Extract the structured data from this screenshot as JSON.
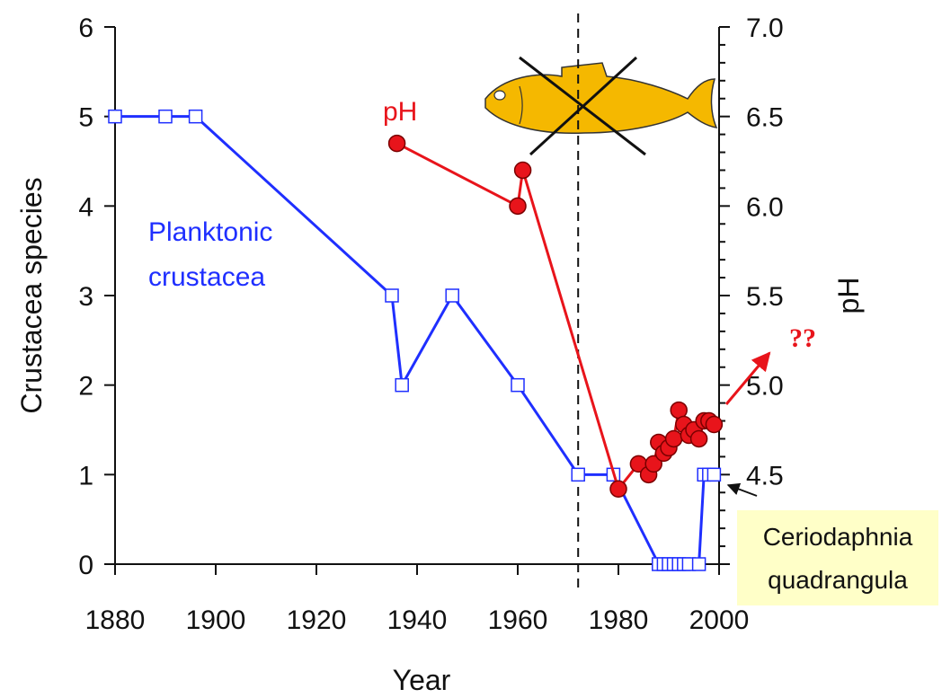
{
  "chart_data": {
    "type": "line",
    "xlabel": "Year",
    "ylabel_left": "Crustacea species",
    "ylabel_right": "pH",
    "xlim": [
      1880,
      2000
    ],
    "ylim_left": [
      0,
      6
    ],
    "ylim_right": [
      4.0,
      7.0
    ],
    "x_ticks": [
      "1880",
      "1900",
      "1920",
      "1940",
      "1960",
      "1980",
      "2000"
    ],
    "y_ticks_left": [
      "0",
      "1",
      "2",
      "3",
      "4",
      "5",
      "6"
    ],
    "y_ticks_right": [
      "4.5",
      "5.0",
      "5.5",
      "6.0",
      "6.5",
      "7.0"
    ],
    "grid": false,
    "event_line_year": 1972,
    "series": [
      {
        "name": "Planktonic crustacea",
        "label": [
          "Planktonic",
          "crustacea"
        ],
        "axis": "left",
        "color": "#1f2fff",
        "marker": "open-square",
        "points": [
          [
            1880,
            5
          ],
          [
            1890,
            5
          ],
          [
            1896,
            5
          ],
          [
            1935,
            3
          ],
          [
            1937,
            2
          ],
          [
            1947,
            3
          ],
          [
            1960,
            2
          ],
          [
            1972,
            1
          ],
          [
            1979,
            1
          ],
          [
            1988,
            0
          ],
          [
            1989,
            0
          ],
          [
            1990,
            0
          ],
          [
            1991,
            0
          ],
          [
            1992,
            0
          ],
          [
            1993,
            0
          ],
          [
            1994,
            0
          ],
          [
            1996,
            0
          ],
          [
            1997,
            1
          ],
          [
            1998,
            1
          ],
          [
            1999,
            1
          ]
        ]
      },
      {
        "name": "pH",
        "label": [
          "pH"
        ],
        "axis": "right",
        "color": "#e8141b",
        "marker": "filled-circle",
        "points": [
          [
            1936,
            6.35
          ],
          [
            1960,
            6.0
          ],
          [
            1961,
            6.2
          ],
          [
            1980,
            4.42
          ],
          [
            1984,
            4.56
          ],
          [
            1986,
            4.5
          ],
          [
            1987,
            4.56
          ],
          [
            1988,
            4.68
          ],
          [
            1989,
            4.62
          ],
          [
            1990,
            4.65
          ],
          [
            1991,
            4.7
          ],
          [
            1992,
            4.86
          ],
          [
            1993,
            4.78
          ],
          [
            1994,
            4.72
          ],
          [
            1995,
            4.75
          ],
          [
            1996,
            4.7
          ],
          [
            1997,
            4.8
          ],
          [
            1998,
            4.8
          ],
          [
            1999,
            4.78
          ]
        ]
      }
    ],
    "annotations": {
      "trend_label": "??",
      "species_note": [
        "Ceriodaphnia",
        "quadrangula"
      ]
    },
    "colors": {
      "fish": "#f5b800",
      "note_background": "#ffffc8"
    }
  }
}
